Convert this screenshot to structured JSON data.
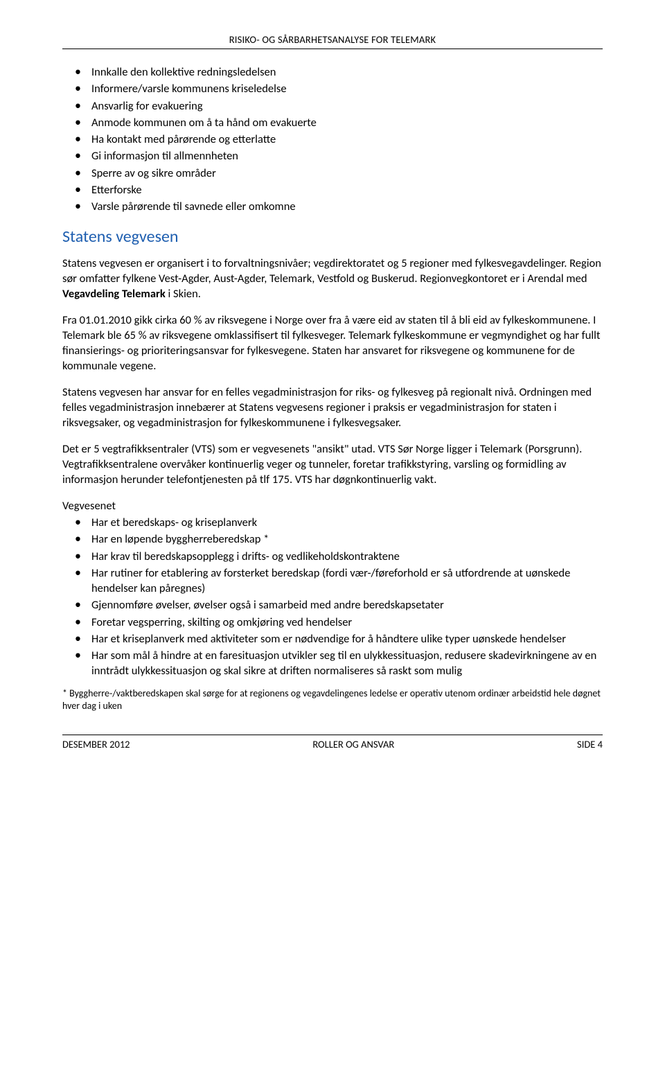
{
  "header": {
    "title": "RISIKO- OG SÅRBARHETSANALYSE FOR TELEMARK"
  },
  "topBullets": [
    "Innkalle den kollektive redningsledelsen",
    "Informere/varsle kommunens kriseledelse",
    "Ansvarlig for evakuering",
    "Anmode kommunen om å ta hånd om evakuerte",
    "Ha kontakt med pårørende og etterlatte",
    "Gi informasjon til allmennheten",
    "Sperre av og sikre områder",
    "Etterforske",
    "Varsle pårørende til savnede eller omkomne"
  ],
  "section": {
    "title": "Statens vegvesen"
  },
  "para1": {
    "pre": "Statens vegvesen er organisert i to forvaltningsnivåer; vegdirektoratet og 5 regioner med fylkesvegavdelinger. Region sør omfatter fylkene Vest-Agder, Aust-Agder, Telemark, Vestfold og Buskerud. Regionvegkontoret er i Arendal med ",
    "bold": "Vegavdeling Telemark",
    "post": " i Skien."
  },
  "para2": "Fra 01.01.2010 gikk cirka 60 % av riksvegene i Norge over fra å være eid av staten til å bli eid av fylkeskommunene. I Telemark ble 65 % av riksvegene omklassifisert til fylkesveger. Telemark fylkeskommune er vegmyndighet og har fullt finansierings- og prioriteringsansvar for fylkesvegene. Staten har ansvaret for riksvegene og kommunene for de kommunale vegene.",
  "para3": "Statens vegvesen har ansvar for en felles vegadministrasjon for riks- og fylkesveg på regionalt nivå.  Ordningen med felles vegadministrasjon innebærer at Statens vegvesens regioner i praksis er vegadministrasjon for staten i riksvegsaker, og vegadministrasjon for fylkeskommunene i fylkesvegsaker.",
  "para4": "Det er 5 vegtrafikksentraler (VTS) som er vegvesenets \"ansikt\" utad.  VTS Sør Norge ligger i Telemark (Porsgrunn). Vegtrafikksentralene overvåker kontinuerlig veger og tunneler, foretar trafikkstyring, varsling og formidling av informasjon herunder telefontjenesten på tlf 175.  VTS har døgnkontinuerlig vakt.",
  "listLabel": "Vegvesenet",
  "lowerBullets": [
    "Har et beredskaps- og kriseplanverk",
    "Har en løpende byggherreberedskap *",
    "Har krav til beredskapsopplegg i drifts- og vedlikeholdskontraktene",
    "Har rutiner for etablering av forsterket beredskap (fordi vær-/føreforhold er så utfordrende at uønskede hendelser kan påregnes)",
    "Gjennomføre øvelser, øvelser også i samarbeid med andre beredskapsetater",
    "Foretar vegsperring, skilting og omkjøring ved hendelser",
    "Har et kriseplanverk med aktiviteter som er nødvendige for å håndtere ulike typer uønskede hendelser",
    "Har som mål å hindre at en faresituasjon utvikler seg til en ulykkessituasjon, redusere skadevirkningene av en inntrådt ulykkessituasjon og skal sikre at driften normaliseres så raskt som mulig"
  ],
  "footnote": "* Byggherre-/vaktberedskapen skal sørge for at regionens og vegavdelingenes ledelse er operativ utenom ordinær arbeidstid hele døgnet hver dag i uken",
  "footer": {
    "left": "DESEMBER 2012",
    "center": "ROLLER OG ANSVAR",
    "right": "SIDE 4"
  },
  "colors": {
    "heading": "#1f5fb0",
    "text": "#000000",
    "background": "#ffffff",
    "rule": "#000000"
  }
}
